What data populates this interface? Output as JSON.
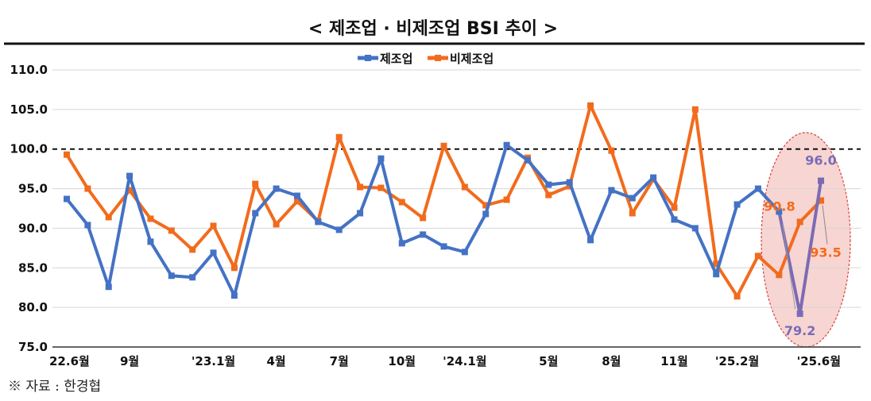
{
  "chart_data": {
    "type": "line",
    "title": "< 제조업 · 비제조업 BSI 추이 >",
    "ylim": [
      75.0,
      110.0
    ],
    "yticks": [
      "110.0",
      "105.0",
      "100.0",
      "95.0",
      "90.0",
      "85.0",
      "80.0",
      "75.0"
    ],
    "ytick_values": [
      110,
      105,
      100,
      95,
      90,
      85,
      80,
      75
    ],
    "reference_line": 100.0,
    "legend_position": "top-center",
    "grid": true,
    "x": [
      "22.6",
      "22.7",
      "22.8",
      "22.9",
      "22.10",
      "22.11",
      "22.12",
      "23.1",
      "23.2",
      "23.3",
      "23.4",
      "23.5",
      "23.6",
      "23.7",
      "23.8",
      "23.9",
      "23.10",
      "23.11",
      "23.12",
      "24.1",
      "24.2",
      "24.3",
      "24.4",
      "24.5",
      "24.6",
      "24.7",
      "24.8",
      "24.9",
      "24.10",
      "24.11",
      "24.12",
      "25.1",
      "25.2",
      "25.3",
      "25.4",
      "25.5",
      "25.6"
    ],
    "xtick_labels": [
      {
        "index": 0,
        "text": "22.6월"
      },
      {
        "index": 3,
        "text": "9월"
      },
      {
        "index": 7,
        "text": "'23.1월"
      },
      {
        "index": 10,
        "text": "4월"
      },
      {
        "index": 13,
        "text": "7월"
      },
      {
        "index": 16,
        "text": "10월"
      },
      {
        "index": 19,
        "text": "'24.1월"
      },
      {
        "index": 23,
        "text": "5월"
      },
      {
        "index": 26,
        "text": "8월"
      },
      {
        "index": 29,
        "text": "11월"
      },
      {
        "index": 32,
        "text": "'25.2월"
      },
      {
        "index": 36,
        "text": "'25.6월"
      }
    ],
    "series": [
      {
        "name": "제조업",
        "color": "#4472C4",
        "label_color": "#7B6BB5",
        "values": [
          93.7,
          90.4,
          82.6,
          96.6,
          88.3,
          84.0,
          83.8,
          86.9,
          81.5,
          91.9,
          95.0,
          94.1,
          90.8,
          89.8,
          91.9,
          98.8,
          88.1,
          89.2,
          87.7,
          87.0,
          91.8,
          100.5,
          98.6,
          95.5,
          95.8,
          88.5,
          94.8,
          93.8,
          96.4,
          91.1,
          90.0,
          84.2,
          93.0,
          95.0,
          92.1,
          79.2,
          96.0
        ],
        "data_labels": [
          {
            "index": 35,
            "text": "79.2"
          },
          {
            "index": 36,
            "text": "96.0"
          }
        ]
      },
      {
        "name": "비제조업",
        "color": "#F26B1D",
        "label_color": "#F26B1D",
        "values": [
          99.3,
          95.0,
          91.4,
          94.8,
          91.2,
          89.7,
          87.3,
          90.3,
          85.0,
          95.6,
          90.5,
          93.4,
          90.9,
          101.5,
          95.2,
          95.1,
          93.3,
          91.3,
          100.4,
          95.2,
          92.9,
          93.6,
          98.9,
          94.2,
          95.3,
          105.5,
          99.8,
          91.9,
          96.2,
          92.6,
          105.0,
          85.5,
          81.4,
          86.5,
          84.1,
          90.8,
          93.5
        ],
        "data_labels": [
          {
            "index": 35,
            "text": "90.8"
          },
          {
            "index": 36,
            "text": "93.5"
          }
        ]
      }
    ]
  },
  "source": "※ 자료 : 한경협",
  "highlight": {
    "fill": "#F4C7C3",
    "stroke": "#D9433A"
  }
}
